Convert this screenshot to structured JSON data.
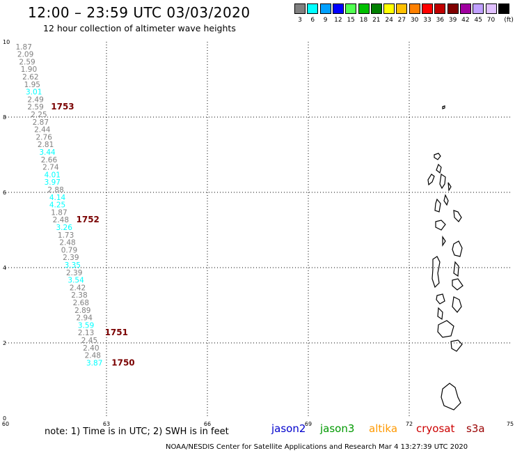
{
  "header": {
    "title": "12:00 – 23:59 UTC 03/03/2020",
    "subtitle": "12 hour collection of altimeter wave heights"
  },
  "legend": {
    "unit": "(ft)",
    "levels": [
      {
        "label": "3",
        "color": "#808080"
      },
      {
        "label": "6",
        "color": "#00ffff"
      },
      {
        "label": "9",
        "color": "#00a0ff"
      },
      {
        "label": "12",
        "color": "#0000ff"
      },
      {
        "label": "15",
        "color": "#50ff50"
      },
      {
        "label": "18",
        "color": "#00c000"
      },
      {
        "label": "21",
        "color": "#008000"
      },
      {
        "label": "24",
        "color": "#ffff00"
      },
      {
        "label": "27",
        "color": "#ffc000"
      },
      {
        "label": "30",
        "color": "#ff8000"
      },
      {
        "label": "33",
        "color": "#ff0000"
      },
      {
        "label": "36",
        "color": "#c00000"
      },
      {
        "label": "39",
        "color": "#800000"
      },
      {
        "label": "42",
        "color": "#a000a0"
      },
      {
        "label": "45",
        "color": "#c0a0ff"
      },
      {
        "label": "70",
        "color": "#e0c0ff"
      },
      {
        "label": "",
        "color": "#000000"
      }
    ]
  },
  "map": {
    "lon_ticks": [
      "60",
      "63",
      "66",
      "69",
      "72",
      "75"
    ],
    "lat_ticks": [
      "10",
      "8",
      "6",
      "4",
      "2",
      "0"
    ],
    "lon_range": [
      60,
      75
    ],
    "lat_range": [
      0,
      10
    ],
    "gridlines": true,
    "observations": [
      {
        "lat": 9.8,
        "lon": 60.3,
        "swh": "1.87",
        "color": "#808080"
      },
      {
        "lat": 9.6,
        "lon": 60.35,
        "swh": "2.09",
        "color": "#808080"
      },
      {
        "lat": 9.4,
        "lon": 60.4,
        "swh": "2.59",
        "color": "#808080"
      },
      {
        "lat": 9.2,
        "lon": 60.45,
        "swh": "1.90",
        "color": "#808080"
      },
      {
        "lat": 9.0,
        "lon": 60.5,
        "swh": "2.62",
        "color": "#808080"
      },
      {
        "lat": 8.8,
        "lon": 60.55,
        "swh": "1.95",
        "color": "#808080"
      },
      {
        "lat": 8.6,
        "lon": 60.6,
        "swh": "3.01",
        "color": "#00ffff"
      },
      {
        "lat": 8.4,
        "lon": 60.65,
        "swh": "2.49",
        "color": "#808080"
      },
      {
        "lat": 8.2,
        "lon": 60.65,
        "swh": "2.59",
        "color": "#808080"
      },
      {
        "lat": 8.0,
        "lon": 60.75,
        "swh": "2.25",
        "color": "#808080"
      },
      {
        "lat": 7.8,
        "lon": 60.8,
        "swh": "2.87",
        "color": "#808080"
      },
      {
        "lat": 7.6,
        "lon": 60.85,
        "swh": "2.44",
        "color": "#808080"
      },
      {
        "lat": 7.4,
        "lon": 60.9,
        "swh": "2.76",
        "color": "#808080"
      },
      {
        "lat": 7.2,
        "lon": 60.95,
        "swh": "2.81",
        "color": "#808080"
      },
      {
        "lat": 7.0,
        "lon": 61.0,
        "swh": "3.44",
        "color": "#00ffff"
      },
      {
        "lat": 6.8,
        "lon": 61.05,
        "swh": "2.66",
        "color": "#808080"
      },
      {
        "lat": 6.6,
        "lon": 61.1,
        "swh": "2.74",
        "color": "#808080"
      },
      {
        "lat": 6.4,
        "lon": 61.15,
        "swh": "4.01",
        "color": "#00ffff"
      },
      {
        "lat": 6.2,
        "lon": 61.15,
        "swh": "3.97",
        "color": "#00ffff"
      },
      {
        "lat": 6.0,
        "lon": 61.25,
        "swh": "2.88",
        "color": "#808080"
      },
      {
        "lat": 5.8,
        "lon": 61.3,
        "swh": "4.14",
        "color": "#00ffff"
      },
      {
        "lat": 5.6,
        "lon": 61.3,
        "swh": "4.25",
        "color": "#00ffff"
      },
      {
        "lat": 5.4,
        "lon": 61.35,
        "swh": "1.87",
        "color": "#808080"
      },
      {
        "lat": 5.2,
        "lon": 61.4,
        "swh": "2.48",
        "color": "#808080"
      },
      {
        "lat": 5.0,
        "lon": 61.5,
        "swh": "3.26",
        "color": "#00ffff"
      },
      {
        "lat": 4.8,
        "lon": 61.55,
        "swh": "1.73",
        "color": "#808080"
      },
      {
        "lat": 4.6,
        "lon": 61.6,
        "swh": "2.48",
        "color": "#808080"
      },
      {
        "lat": 4.4,
        "lon": 61.65,
        "swh": "0.79",
        "color": "#808080"
      },
      {
        "lat": 4.2,
        "lon": 61.7,
        "swh": "2.39",
        "color": "#808080"
      },
      {
        "lat": 4.0,
        "lon": 61.75,
        "swh": "3.35",
        "color": "#00ffff"
      },
      {
        "lat": 3.8,
        "lon": 61.8,
        "swh": "2.39",
        "color": "#808080"
      },
      {
        "lat": 3.6,
        "lon": 61.85,
        "swh": "3.54",
        "color": "#00ffff"
      },
      {
        "lat": 3.4,
        "lon": 61.9,
        "swh": "2.42",
        "color": "#808080"
      },
      {
        "lat": 3.2,
        "lon": 61.95,
        "swh": "2.38",
        "color": "#808080"
      },
      {
        "lat": 3.0,
        "lon": 62.0,
        "swh": "2.68",
        "color": "#808080"
      },
      {
        "lat": 2.8,
        "lon": 62.05,
        "swh": "2.89",
        "color": "#808080"
      },
      {
        "lat": 2.6,
        "lon": 62.1,
        "swh": "2.94",
        "color": "#808080"
      },
      {
        "lat": 2.4,
        "lon": 62.15,
        "swh": "3.59",
        "color": "#00ffff"
      },
      {
        "lat": 2.2,
        "lon": 62.15,
        "swh": "2.13",
        "color": "#808080"
      },
      {
        "lat": 2.0,
        "lon": 62.25,
        "swh": "2.45",
        "color": "#808080"
      },
      {
        "lat": 1.8,
        "lon": 62.3,
        "swh": "2.40",
        "color": "#808080"
      },
      {
        "lat": 1.6,
        "lon": 62.35,
        "swh": "2.48",
        "color": "#808080"
      },
      {
        "lat": 1.4,
        "lon": 62.4,
        "swh": "3.87",
        "color": "#00ffff"
      }
    ],
    "time_labels": [
      {
        "lat": 8.2,
        "lon": 61.35,
        "text": "1753"
      },
      {
        "lat": 5.2,
        "lon": 62.1,
        "text": "1752"
      },
      {
        "lat": 2.2,
        "lon": 62.95,
        "text": "1751"
      },
      {
        "lat": 1.4,
        "lon": 63.15,
        "text": "1750"
      }
    ]
  },
  "footer": {
    "note": "note:  1) Time is in UTC;  2) SWH is in feet",
    "satellites": [
      {
        "name": "jason2",
        "color": "#0000cc"
      },
      {
        "name": "jason3",
        "color": "#009900"
      },
      {
        "name": "altika",
        "color": "#ff9900"
      },
      {
        "name": "cryosat",
        "color": "#cc0000"
      },
      {
        "name": "s3a",
        "color": "#990000"
      }
    ],
    "credit": "NOAA/NESDIS Center for Satellite Applications and Research     Mar  4 13:27:39 UTC 2020"
  }
}
